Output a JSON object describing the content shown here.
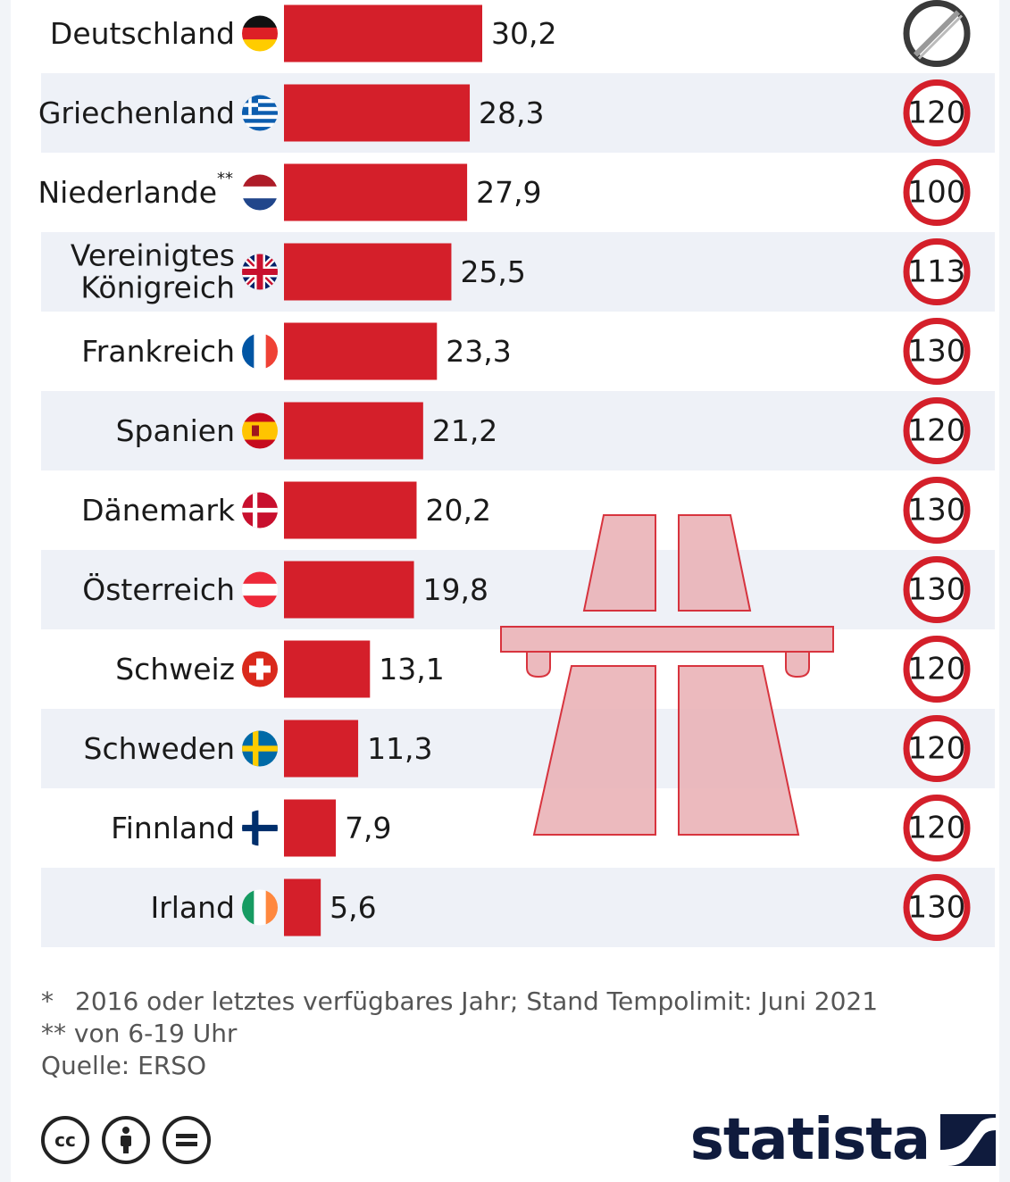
{
  "chart_data": {
    "type": "bar",
    "orientation": "horizontal",
    "categories": [
      "Deutschland",
      "Griechenland",
      "Niederlande**",
      "Vereinigtes Königreich",
      "Frankreich",
      "Spanien",
      "Dänemark",
      "Österreich",
      "Schweiz",
      "Schweden",
      "Finnland",
      "Irland"
    ],
    "values": [
      30.2,
      28.3,
      27.9,
      25.5,
      23.3,
      21.2,
      20.2,
      19.8,
      13.1,
      11.3,
      7.9,
      5.6
    ],
    "value_labels": [
      "30,2",
      "28,3",
      "27,9",
      "25,5",
      "23,3",
      "21,2",
      "20,2",
      "19,8",
      "13,1",
      "11,3",
      "7,9",
      "5,6"
    ],
    "speed_limits": [
      "none",
      "120",
      "100",
      "113",
      "130",
      "120",
      "130",
      "130",
      "120",
      "120",
      "120",
      "130"
    ],
    "xlim": [
      0,
      30.2
    ],
    "bar_color": "#d41f2a",
    "stripe_color": "#eef1f7",
    "limit_ring_color": "#d41f2a",
    "no_limit_ring_color": "#3a3a3a"
  },
  "flags": [
    "de",
    "gr",
    "nl",
    "gb",
    "fr",
    "es",
    "dk",
    "at",
    "ch",
    "se",
    "fi",
    "ie"
  ],
  "footnotes": {
    "star_mark": "*",
    "star_text": "2016 oder letztes verfügbares Jahr; Stand Tempolimit: Juni 2021",
    "double_star": "** von 6-19 Uhr",
    "source": "Quelle: ERSO"
  },
  "license_icons": [
    "cc-icon",
    "by-icon",
    "nd-icon"
  ],
  "brand": {
    "name": "statista"
  }
}
